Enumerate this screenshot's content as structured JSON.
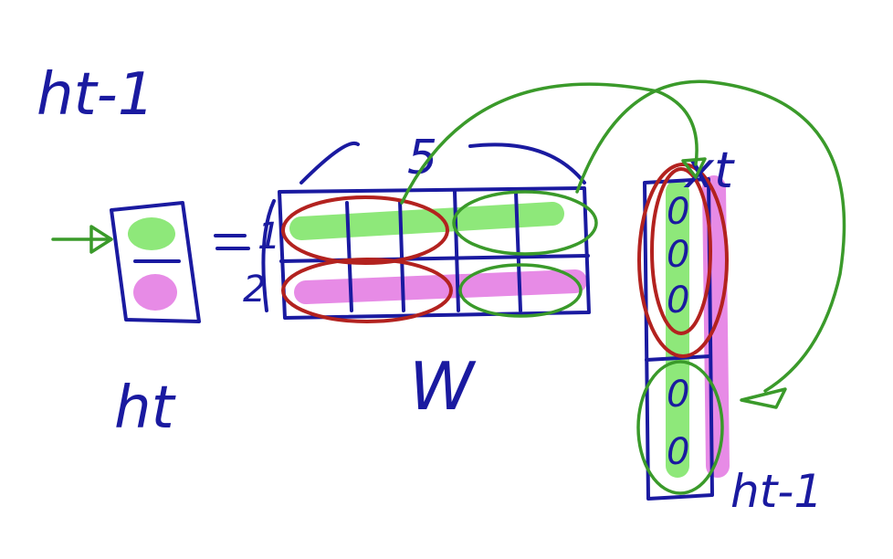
{
  "labels": {
    "top_left": "ht-1",
    "h_vector": "ht",
    "matrix": "W",
    "width_brace": "5",
    "row_1": "1",
    "row_2": "2",
    "x_vector": "xt",
    "h_prev_vector": "ht-1"
  },
  "colors": {
    "ink": "#1a1aa0",
    "red_circle": "#b3221f",
    "green_circle": "#3a9a2a",
    "green_highlight": "#8ee87a",
    "pink_highlight": "#e78be6"
  },
  "x_vector_cells": [
    "0",
    "0",
    "0"
  ],
  "h_prev_vector_cells": [
    "0",
    "0"
  ]
}
